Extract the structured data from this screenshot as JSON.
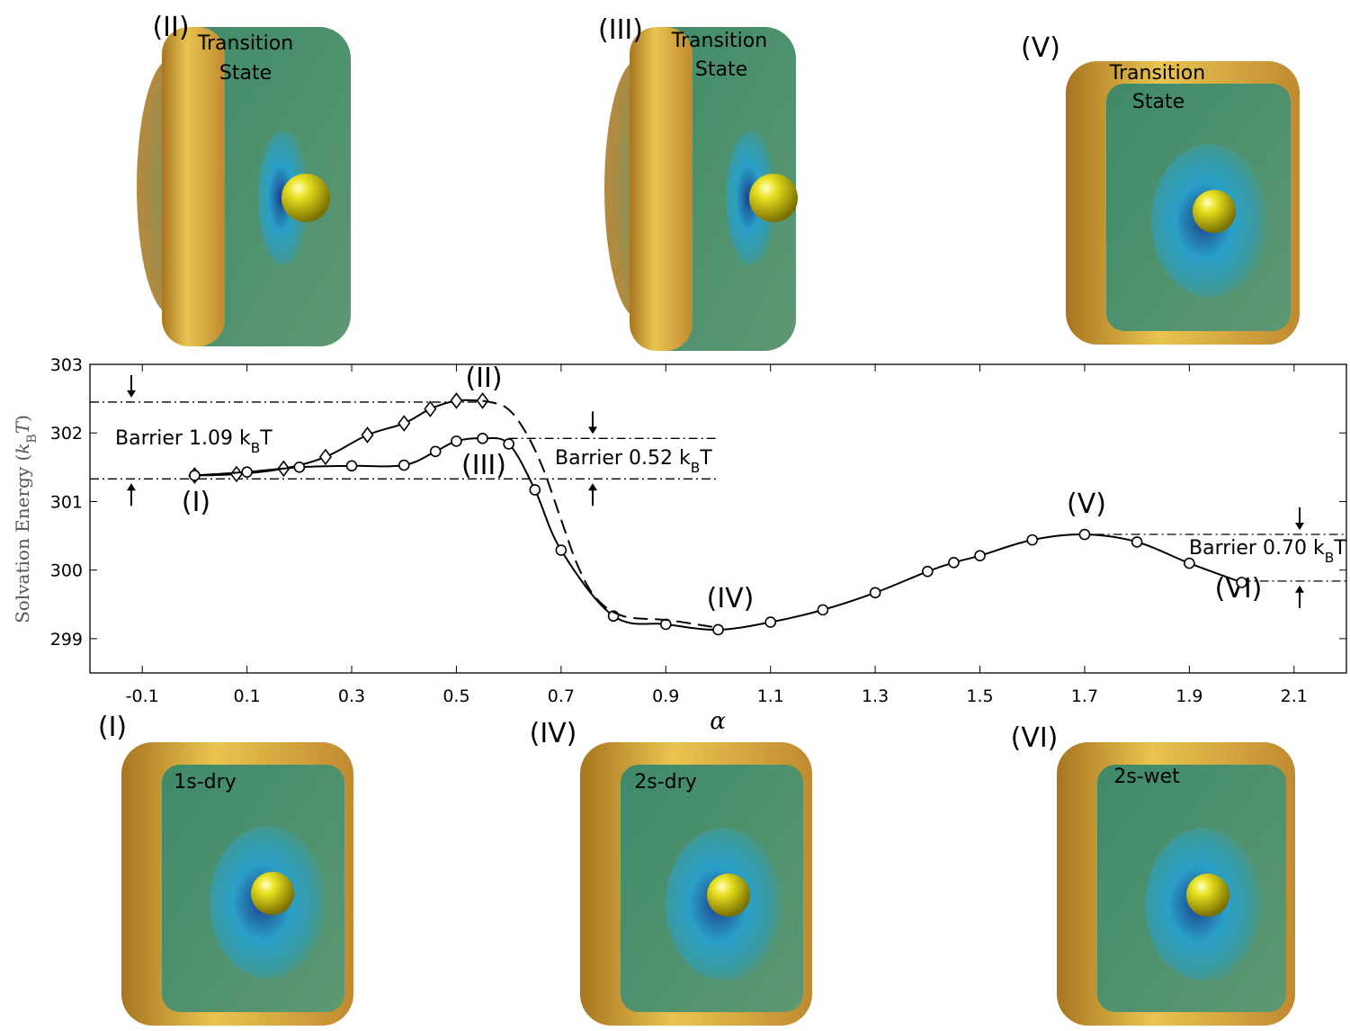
{
  "chart_data": {
    "type": "line",
    "xlabel": "α",
    "ylabel": [
      "Solvation Energy (",
      "k",
      "B",
      "T",
      ")"
    ],
    "xlim": [
      -0.2,
      2.2
    ],
    "ylim": [
      298.5,
      303
    ],
    "xticks": [
      -0.1,
      0.1,
      0.3,
      0.5,
      0.7,
      0.9,
      1.1,
      1.3,
      1.5,
      1.7,
      1.9,
      2.1
    ],
    "yticks": [
      299,
      300,
      301,
      302,
      303
    ],
    "series": [
      {
        "marker": "diamond",
        "color": "#000000",
        "x": [
          0,
          0.08,
          0.17,
          0.25,
          0.33,
          0.4,
          0.45,
          0.5,
          0.55
        ],
        "values": [
          301.38,
          301.4,
          301.48,
          301.65,
          301.97,
          302.14,
          302.35,
          302.47,
          302.47
        ]
      },
      {
        "marker": "circle",
        "color": "#000000",
        "x": [
          0,
          0.1,
          0.2,
          0.3,
          0.4,
          0.46,
          0.5,
          0.55,
          0.6,
          0.65,
          0.7,
          0.8,
          0.9,
          1.0,
          1.1,
          1.2,
          1.3,
          1.4,
          1.45,
          1.5,
          1.6,
          1.7,
          1.8,
          1.9,
          2.0
        ],
        "values": [
          301.38,
          301.43,
          301.5,
          301.52,
          301.53,
          301.73,
          301.88,
          301.92,
          301.84,
          301.17,
          300.29,
          299.33,
          299.21,
          299.13,
          299.24,
          299.42,
          299.67,
          299.98,
          300.11,
          300.21,
          300.44,
          300.52,
          300.41,
          300.1,
          299.82
        ]
      },
      {
        "marker": "none",
        "dash": true,
        "color": "#000000",
        "x": [
          0.55,
          0.595,
          0.63,
          0.664,
          0.698,
          0.732,
          0.767,
          0.818,
          0.904,
          0.99
        ],
        "values": [
          302.47,
          302.37,
          302.04,
          301.51,
          300.78,
          300.06,
          299.59,
          299.33,
          299.27,
          299.17
        ]
      }
    ],
    "reference_lines": [
      {
        "y": 302.45,
        "x": [
          -0.2,
          0.55
        ]
      },
      {
        "y": 301.33,
        "x": [
          -0.2,
          1.0
        ]
      },
      {
        "y": 301.92,
        "x": [
          0.6,
          1.0
        ]
      },
      {
        "y": 300.52,
        "x": [
          1.72,
          2.2
        ]
      },
      {
        "y": 299.84,
        "x": [
          2.0,
          2.2
        ]
      }
    ],
    "barriers": [
      [
        "Barrier 1.09 k",
        "B",
        "T"
      ],
      [
        "Barrier 0.52 k",
        "B",
        "T"
      ],
      [
        "Barrier 0.70 k",
        "B",
        "T"
      ]
    ],
    "point_labels": [
      "(I)",
      "(II)",
      "(III)",
      "(IV)",
      "(V)",
      "(VI)"
    ]
  },
  "panels": [
    {
      "label": "(II)",
      "text": [
        "Transition",
        "State"
      ]
    },
    {
      "label": "(III)",
      "text": [
        "Transition",
        "State"
      ]
    },
    {
      "label": "(V)",
      "text": [
        "Transition",
        "State"
      ]
    },
    {
      "label": "(I)",
      "text": [
        "1s-dry"
      ]
    },
    {
      "label": "(IV)",
      "text": [
        "2s-dry"
      ]
    },
    {
      "label": "(VI)",
      "text": [
        "2s-wet"
      ]
    }
  ]
}
